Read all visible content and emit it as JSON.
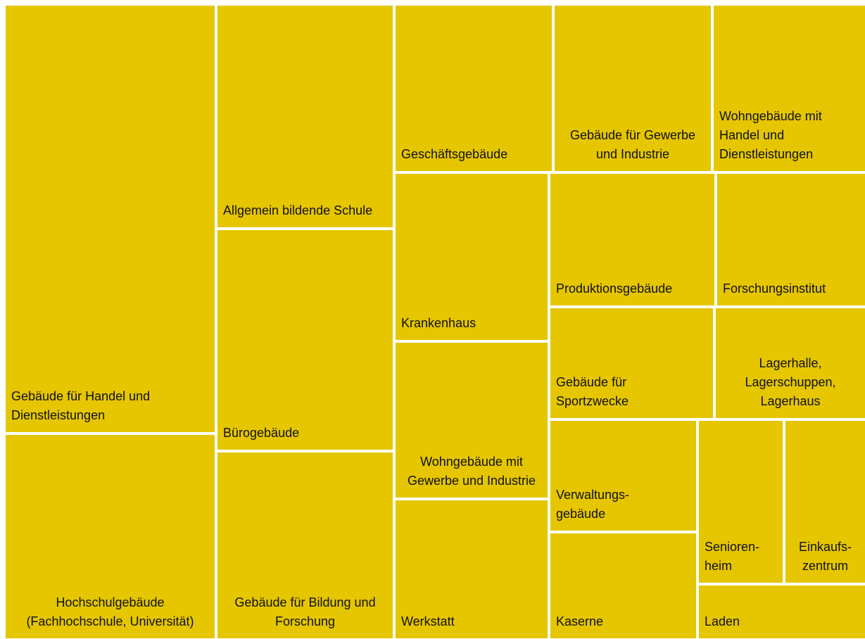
{
  "chart_data": {
    "type": "treemap",
    "color": "#e5c600",
    "tiles": [
      {
        "label": [
          "Gebäude für Handel und",
          "Dienstleistungen"
        ]
      },
      {
        "label": [
          "Hochschulgebäude",
          "(Fachhochschule, Universität)"
        ]
      },
      {
        "label": [
          "Allgemein bildende Schule"
        ]
      },
      {
        "label": [
          "Bürogebäude"
        ]
      },
      {
        "label": [
          "Gebäude für Bildung und",
          "Forschung"
        ]
      },
      {
        "label": [
          "Geschäftsgebäude"
        ]
      },
      {
        "label": [
          "Gebäude für Gewerbe",
          "und Industrie"
        ]
      },
      {
        "label": [
          "Wohngebäude mit",
          "Handel und",
          "Dienstleistungen"
        ]
      },
      {
        "label": [
          "Krankenhaus"
        ]
      },
      {
        "label": [
          "Wohngebäude mit",
          "Gewerbe und Industrie"
        ]
      },
      {
        "label": [
          "Werkstatt"
        ]
      },
      {
        "label": [
          "Produktionsgebäude"
        ]
      },
      {
        "label": [
          "Forschungsinstitut"
        ]
      },
      {
        "label": [
          "Gebäude für",
          "Sportzwecke"
        ]
      },
      {
        "label": [
          "Lagerhalle,",
          "Lagerschuppen,",
          "Lagerhaus"
        ]
      },
      {
        "label": [
          "Verwaltungs-",
          "gebäude"
        ]
      },
      {
        "label": [
          "Kaserne"
        ]
      },
      {
        "label": [
          "Senioren-",
          "heim"
        ]
      },
      {
        "label": [
          "Einkaufs-",
          "zentrum"
        ]
      },
      {
        "label": [
          "Laden"
        ]
      }
    ]
  }
}
